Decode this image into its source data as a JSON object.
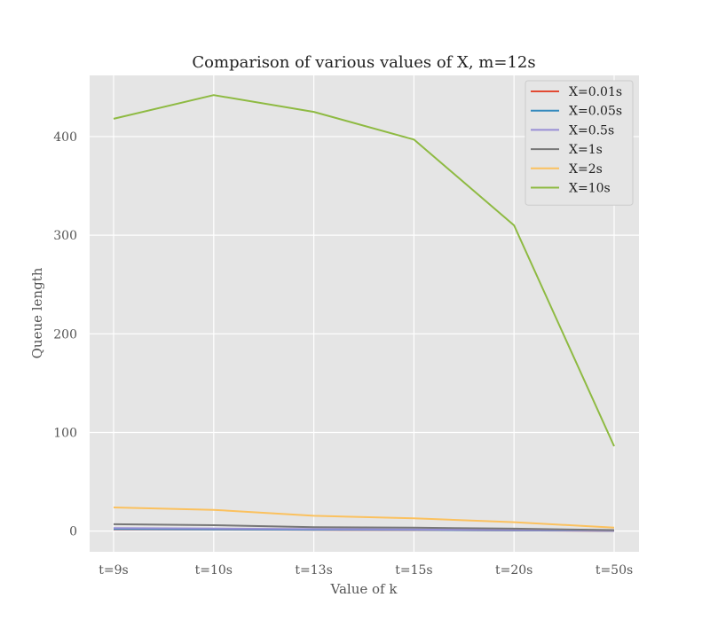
{
  "chart_data": {
    "type": "line",
    "title": "Comparison of various values of X, m=12s",
    "xlabel": "Value of k",
    "ylabel": "Queue length",
    "categories": [
      "t=9s",
      "t=10s",
      "t=13s",
      "t=15s",
      "t=20s",
      "t=50s"
    ],
    "ylim": [
      -21,
      462
    ],
    "yticks": [
      0,
      100,
      200,
      300,
      400
    ],
    "grid": true,
    "background": "#e5e5e5",
    "legend_position": "top-right",
    "series": [
      {
        "name": "X=0.01s",
        "color": "#e24a33",
        "values": [
          1.8,
          1.6,
          1.2,
          1.0,
          0.7,
          0.2
        ]
      },
      {
        "name": "X=0.05s",
        "color": "#348abd",
        "values": [
          2.0,
          1.8,
          1.4,
          1.2,
          0.8,
          0.3
        ]
      },
      {
        "name": "X=0.5s",
        "color": "#988ed5",
        "values": [
          3.0,
          2.6,
          2.0,
          1.7,
          1.2,
          0.4
        ]
      },
      {
        "name": "X=1s",
        "color": "#777777",
        "values": [
          7.0,
          6.0,
          4.0,
          3.5,
          2.5,
          1.0
        ]
      },
      {
        "name": "X=2s",
        "color": "#fbc15e",
        "values": [
          24.0,
          21.5,
          15.5,
          13.0,
          9.0,
          3.5
        ]
      },
      {
        "name": "X=10s",
        "color": "#8eba42",
        "values": [
          418,
          442,
          425,
          397,
          310,
          86
        ]
      }
    ]
  }
}
